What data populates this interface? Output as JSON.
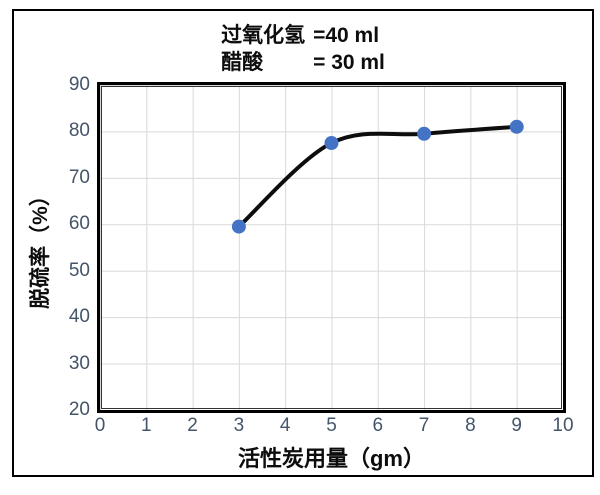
{
  "chart_data": {
    "type": "line",
    "title_lines": [
      {
        "label": "过氧化氢",
        "value": "=40 ml"
      },
      {
        "label": "醋酸",
        "value": "= 30 ml"
      }
    ],
    "xlabel": "活性炭用量（gm）",
    "ylabel": "脱硫率（%）",
    "x": [
      3,
      5,
      7,
      9
    ],
    "y": [
      59.5,
      77.5,
      79.5,
      81
    ],
    "xlim": [
      0,
      10
    ],
    "ylim": [
      20,
      90
    ],
    "x_ticks": [
      0,
      1,
      2,
      3,
      4,
      5,
      6,
      7,
      8,
      9,
      10
    ],
    "y_ticks": [
      90,
      80,
      70,
      60,
      50,
      40,
      30,
      20
    ],
    "grid": true,
    "legend_position": "none",
    "colors": {
      "line": "#0d0d0d",
      "marker": "#4472C4",
      "gridline": "#d9d9d9",
      "tick_label": "#44546A"
    }
  }
}
